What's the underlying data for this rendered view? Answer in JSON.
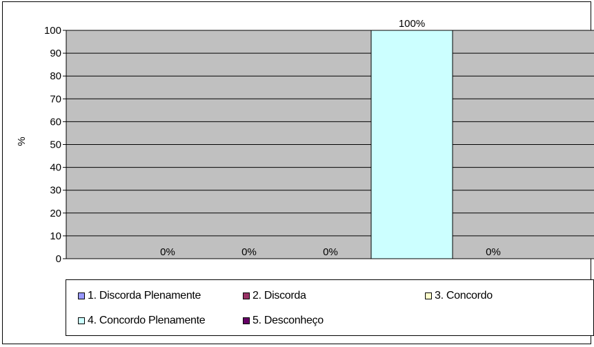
{
  "chart_data": {
    "type": "bar",
    "title": "",
    "xlabel": "",
    "ylabel": "%",
    "ylim": [
      0,
      100
    ],
    "yticks": [
      0,
      10,
      20,
      30,
      40,
      50,
      60,
      70,
      80,
      90,
      100
    ],
    "grid": true,
    "legend_position": "bottom",
    "plot_background": "#c0c0c0",
    "series": [
      {
        "name": "1. Discorda Plenamente",
        "value": 0,
        "label": "0%",
        "color": "#9999ff"
      },
      {
        "name": "2. Discorda",
        "value": 0,
        "label": "0%",
        "color": "#993366"
      },
      {
        "name": "3. Concordo",
        "value": 0,
        "label": "0%",
        "color": "#ffffcc"
      },
      {
        "name": "4. Concordo Plenamente",
        "value": 100,
        "label": "100%",
        "color": "#ccffff"
      },
      {
        "name": "5. Desconheço",
        "value": 0,
        "label": "0%",
        "color": "#660066"
      }
    ]
  }
}
